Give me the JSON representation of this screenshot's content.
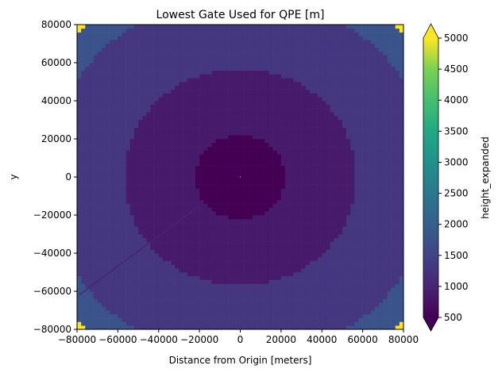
{
  "chart_data": {
    "type": "heatmap",
    "title": "Lowest Gate Used for QPE [m]",
    "xlabel": "Distance from Origin [meters]",
    "ylabel": "y",
    "xlim": [
      -80000,
      80000
    ],
    "ylim": [
      -80000,
      80000
    ],
    "xticks": [
      -80000,
      -60000,
      -40000,
      -20000,
      0,
      20000,
      40000,
      60000,
      80000
    ],
    "yticks": [
      -80000,
      -60000,
      -40000,
      -20000,
      0,
      20000,
      40000,
      60000,
      80000
    ],
    "xtick_labels": [
      "−80000",
      "−60000",
      "−40000",
      "−20000",
      "0",
      "20000",
      "40000",
      "60000",
      "80000"
    ],
    "ytick_labels": [
      "−80000",
      "−60000",
      "−40000",
      "−20000",
      "0",
      "20000",
      "40000",
      "60000",
      "80000"
    ],
    "colormap": "viridis",
    "colorbar": {
      "label": "height_expanded",
      "vmin": 500,
      "vmax": 5000,
      "extend": "both",
      "ticks": [
        500,
        1000,
        1500,
        2000,
        2500,
        3000,
        3500,
        4000,
        4500,
        5000
      ],
      "tick_labels": [
        "500",
        "1000",
        "1500",
        "2000",
        "2500",
        "3000",
        "3500",
        "4000",
        "4500",
        "5000"
      ]
    },
    "radial_bands": [
      {
        "r_min": 0,
        "r_max": 22000,
        "value": 500
      },
      {
        "r_min": 22000,
        "r_max": 57000,
        "value": 850
      },
      {
        "r_min": 57000,
        "r_max": 95000,
        "value": 1300
      },
      {
        "r_min": 95000,
        "r_max": 110000,
        "value": 1800
      },
      {
        "r_min": 110000,
        "r_max": 120000,
        "value": 5000
      }
    ],
    "grid": false
  }
}
